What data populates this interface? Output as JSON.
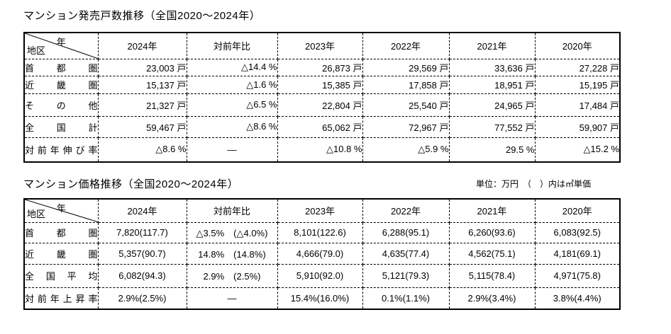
{
  "table1": {
    "title": "マンション発売戸数推移（全国2020～2024年）",
    "corner": {
      "top": "年",
      "bottom": "地区"
    },
    "columns": [
      "2024年",
      "対前年比",
      "2023年",
      "2022年",
      "2021年",
      "2020年"
    ],
    "rows": [
      {
        "label": "首都圏",
        "cells": [
          "23,003 戸",
          "△14.4 %",
          "26,873 戸",
          "29,569 戸",
          "33,636 戸",
          "27,228 戸"
        ]
      },
      {
        "label": "近畿圏",
        "cells": [
          "15,137 戸",
          "△1.6 %",
          "15,385 戸",
          "17,858 戸",
          "18,951 戸",
          "15,195 戸"
        ]
      },
      {
        "label": "その他",
        "cells": [
          "21,327 戸",
          "△6.5 %",
          "22,804 戸",
          "25,540 戸",
          "24,965 戸",
          "17,484 戸"
        ]
      },
      {
        "label": "全国計",
        "cells": [
          "59,467 戸",
          "△8.6 %",
          "65,062 戸",
          "72,967 戸",
          "77,552 戸",
          "59,907 戸"
        ]
      },
      {
        "label": "対前年伸び率",
        "cells": [
          "△8.6 %",
          "—",
          "△10.8 %",
          "△5.9 %",
          "29.5 %",
          "△15.2 %"
        ]
      }
    ]
  },
  "table2": {
    "title": "マンション価格推移（全国2020～2024年）",
    "unit_note": "単位：万円　（　）内は㎡単価",
    "corner": {
      "top": "年",
      "bottom": "地区"
    },
    "columns": [
      "2024年",
      "対前年比",
      "2023年",
      "2022年",
      "2021年",
      "2020年"
    ],
    "rows": [
      {
        "label": "首都圏",
        "cells": [
          "7,820(117.7)",
          "△3.5%　(△4.0%)",
          "8,101(122.6)",
          "6,288(95.1)",
          "6,260(93.6)",
          "6,083(92.5)"
        ]
      },
      {
        "label": "近畿圏",
        "cells": [
          "5,357(90.7)",
          "14.8%　(14.8%)",
          "4,666(79.0)",
          "4,635(77.4)",
          "4,562(75.1)",
          "4,181(69.1)"
        ]
      },
      {
        "label": "全国平均",
        "cells": [
          "6,082(94.3)",
          "2.9%　(2.5%)",
          "5,910(92.0)",
          "5,121(79.3)",
          "5,115(78.4)",
          "4,971(75.8)"
        ]
      },
      {
        "label": "対前年上昇率",
        "cells": [
          "2.9%(2.5%)",
          "—",
          "15.4%(16.0%)",
          "0.1%(1.1%)",
          "2.9%(3.4%)",
          "3.8%(4.4%)"
        ]
      }
    ]
  }
}
